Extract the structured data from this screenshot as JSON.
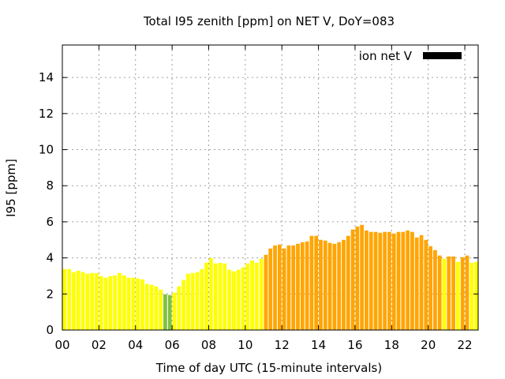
{
  "chart_data": {
    "type": "bar",
    "title": "Total I95 zenith [ppm] on NET V, DoY=083",
    "xlabel": "Time of day UTC (15-minute intervals)",
    "ylabel": "I95 [ppm]",
    "xlim": [
      0,
      22.73
    ],
    "ylim": [
      0,
      15.8
    ],
    "grid": true,
    "legend": {
      "label": "ion net V",
      "placement": "top-right",
      "color": "#000000"
    },
    "xticks": [
      {
        "v": 0,
        "l": "00"
      },
      {
        "v": 2,
        "l": "02"
      },
      {
        "v": 4,
        "l": "04"
      },
      {
        "v": 6,
        "l": "06"
      },
      {
        "v": 8,
        "l": "08"
      },
      {
        "v": 10,
        "l": "10"
      },
      {
        "v": 12,
        "l": "12"
      },
      {
        "v": 14,
        "l": "14"
      },
      {
        "v": 16,
        "l": "16"
      },
      {
        "v": 18,
        "l": "18"
      },
      {
        "v": 20,
        "l": "20"
      },
      {
        "v": 22,
        "l": "22"
      }
    ],
    "yticks": [
      {
        "v": 0,
        "l": "0"
      },
      {
        "v": 2,
        "l": "2"
      },
      {
        "v": 4,
        "l": "4"
      },
      {
        "v": 6,
        "l": "6"
      },
      {
        "v": 8,
        "l": "8"
      },
      {
        "v": 10,
        "l": "10"
      },
      {
        "v": 12,
        "l": "12"
      },
      {
        "v": 14,
        "l": "14"
      }
    ],
    "interval_hours": 0.25,
    "colors": {
      "low": "#80c040",
      "mid": "#ffff00",
      "high": "#ffa500"
    },
    "thresholds": [
      2,
      4
    ],
    "values": [
      3.38,
      3.38,
      3.21,
      3.29,
      3.21,
      3.12,
      3.16,
      3.16,
      2.99,
      2.9,
      2.99,
      3.03,
      3.16,
      3.03,
      2.9,
      2.9,
      2.86,
      2.81,
      2.55,
      2.51,
      2.42,
      2.24,
      1.98,
      1.94,
      2.07,
      2.42,
      2.77,
      3.12,
      3.16,
      3.21,
      3.38,
      3.73,
      3.99,
      3.69,
      3.73,
      3.69,
      3.34,
      3.25,
      3.34,
      3.47,
      3.69,
      3.86,
      3.73,
      3.95,
      4.17,
      4.52,
      4.69,
      4.74,
      4.52,
      4.69,
      4.69,
      4.78,
      4.87,
      4.91,
      5.22,
      5.22,
      5.0,
      4.96,
      4.83,
      4.78,
      4.87,
      5.0,
      5.22,
      5.57,
      5.74,
      5.83,
      5.52,
      5.44,
      5.44,
      5.39,
      5.44,
      5.44,
      5.35,
      5.44,
      5.44,
      5.52,
      5.44,
      5.13,
      5.26,
      5.0,
      4.65,
      4.43,
      4.13,
      3.95,
      4.08,
      4.08,
      3.78,
      4.04,
      4.13,
      3.73,
      3.78,
      3.64
    ]
  }
}
